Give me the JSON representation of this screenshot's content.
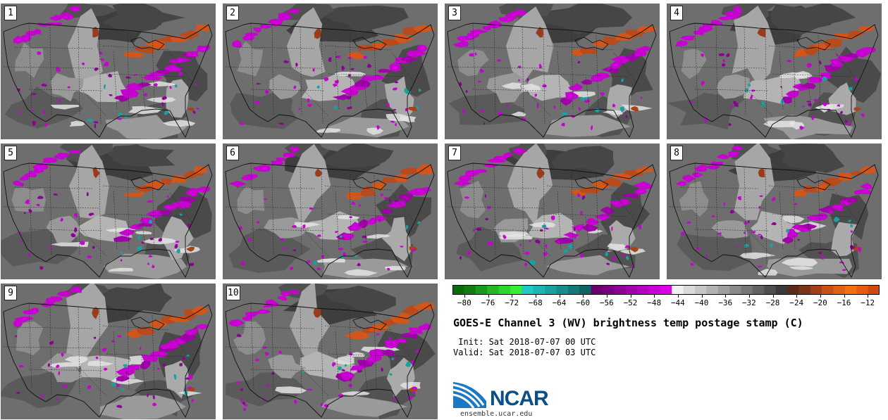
{
  "panels": [
    {
      "label": "1"
    },
    {
      "label": "2"
    },
    {
      "label": "3"
    },
    {
      "label": "4"
    },
    {
      "label": "5"
    },
    {
      "label": "6"
    },
    {
      "label": "7"
    },
    {
      "label": "8"
    },
    {
      "label": "9"
    },
    {
      "label": "10"
    }
  ],
  "colorbar": {
    "colors": [
      "#0a6b0a",
      "#117d11",
      "#1a9a1a",
      "#24b624",
      "#2ed42e",
      "#33ee33",
      "#22c8c8",
      "#1eb4b4",
      "#1aa0a0",
      "#168c8c",
      "#127878",
      "#0e6464",
      "#6a0070",
      "#7a0082",
      "#8c0096",
      "#a000aa",
      "#b400be",
      "#c800d2",
      "#dc00e6",
      "#f0f0f0",
      "#dadada",
      "#c6c6c6",
      "#b2b2b2",
      "#9e9e9e",
      "#8a8a8a",
      "#767676",
      "#626262",
      "#4e4e4e",
      "#3a3a3a",
      "#5a2a1a",
      "#7a3418",
      "#a04018",
      "#c85014",
      "#e06014",
      "#f07010",
      "#e85a10",
      "#d04a0c"
    ],
    "ticks": [
      "−80",
      "−76",
      "−72",
      "−68",
      "−64",
      "−60",
      "−56",
      "−52",
      "−48",
      "−44",
      "−40",
      "−36",
      "−32",
      "−28",
      "−24",
      "−20",
      "−16",
      "−12"
    ],
    "min": -82,
    "max": -10
  },
  "title": "GOES-E Channel 3 (WV) brightness temp postage stamp (C)",
  "init": " Init: Sat 2018-07-07 00 UTC",
  "valid": "Valid: Sat 2018-07-07 03 UTC",
  "logo": {
    "word": "NCAR",
    "url": "ensemble.ucar.edu"
  }
}
